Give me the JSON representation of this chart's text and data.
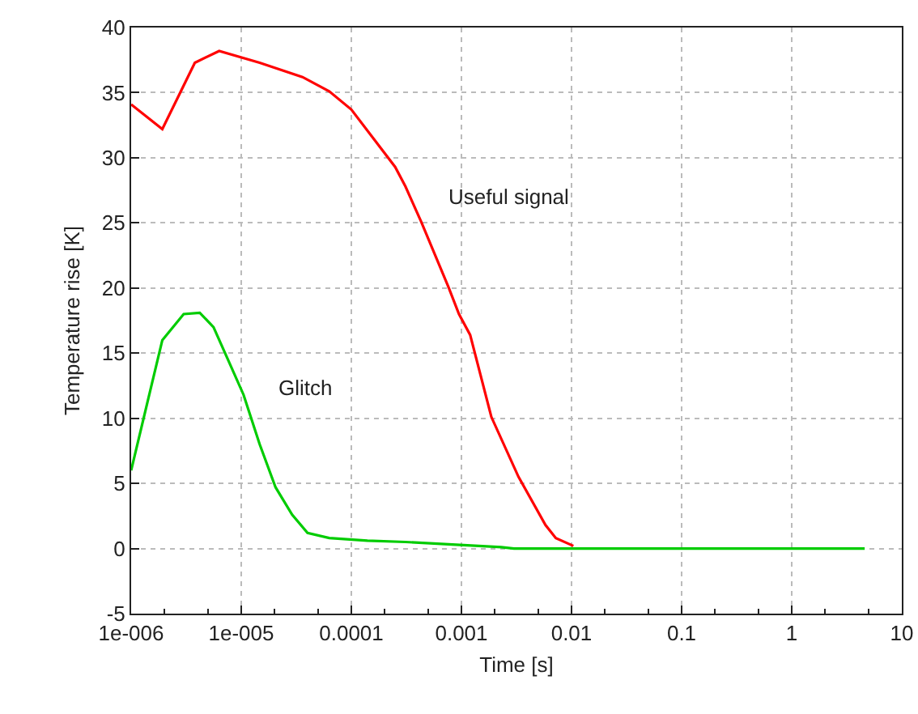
{
  "chart_data": {
    "type": "line",
    "xlabel": "Time [s]",
    "ylabel": "Temperature rise [K]",
    "log": "x",
    "grid": true,
    "marker": "none",
    "line_style": "solid",
    "xlim": [
      1e-06,
      10
    ],
    "ylim": [
      -5,
      40
    ],
    "xticks": [
      {
        "value": 1e-06,
        "label": "1e-006"
      },
      {
        "value": 1e-05,
        "label": "1e-005"
      },
      0.0001,
      0.001,
      0.01,
      0.1,
      1,
      10
    ],
    "yticks": [
      -5,
      0,
      5,
      10,
      15,
      20,
      25,
      30,
      35,
      40
    ],
    "series": [
      {
        "color": "#ff0000",
        "x": [
          1e-06,
          1.92e-06,
          3.79e-06,
          6.3e-06,
          1.47e-05,
          3.6e-05,
          6.3e-05,
          0.0001,
          0.00025,
          0.00031,
          0.00043,
          0.00076,
          0.00095,
          0.0012,
          0.00187,
          0.0033,
          0.0058,
          0.0072,
          0.0104
        ],
        "values": [
          34.1,
          32.2,
          37.3,
          38.2,
          37.3,
          36.2,
          35.1,
          33.7,
          29.3,
          27.8,
          25.1,
          20.1,
          18.0,
          16.4,
          10.1,
          5.5,
          1.8,
          0.8,
          0.2
        ]
      },
      {
        "color": "#00cc00",
        "x": [
          1e-06,
          1.92e-06,
          3e-06,
          4.2e-06,
          5.6e-06,
          7.4e-06,
          1.05e-05,
          1.47e-05,
          2.05e-05,
          2.9e-05,
          4e-05,
          6.3e-05,
          0.00014,
          0.00031,
          0.0023,
          0.003,
          0.03,
          0.3,
          4.6
        ],
        "values": [
          6.0,
          16.0,
          18.0,
          18.1,
          17.0,
          14.7,
          11.8,
          8.0,
          4.7,
          2.6,
          1.2,
          0.8,
          0.6,
          0.5,
          0.1,
          0,
          0,
          0,
          0
        ]
      }
    ],
    "annotations": [
      "Useful signal",
      "Glitch"
    ]
  }
}
